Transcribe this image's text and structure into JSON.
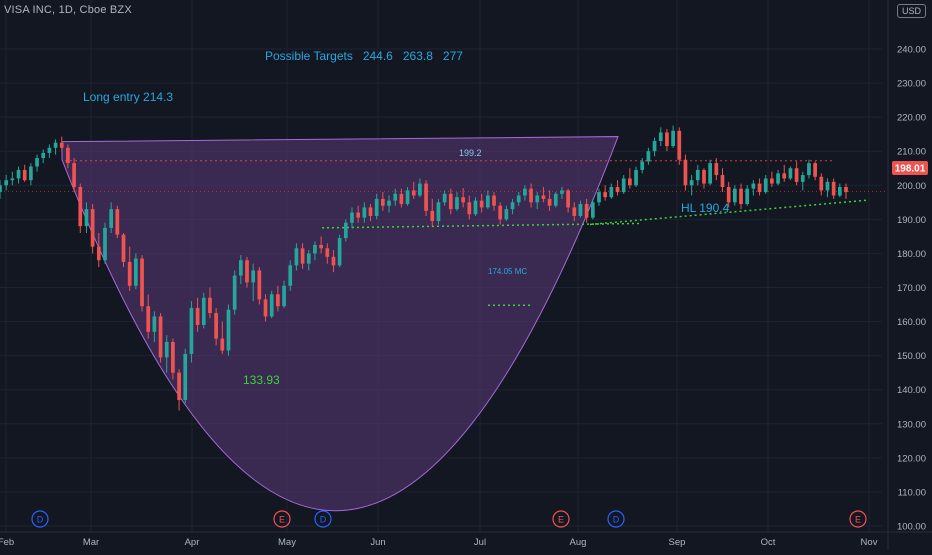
{
  "header": {
    "symbol_title": "VISA INC, 1D, Cboe BZX",
    "currency": "USD"
  },
  "chart_data": {
    "type": "candlestick",
    "symbol": "VISA INC",
    "interval": "1D",
    "exchange": "Cboe BZX",
    "currency": "USD",
    "x_tick_labels": [
      "Feb",
      "Mar",
      "Apr",
      "May",
      "Jun",
      "Jul",
      "Aug",
      "Sep",
      "Oct",
      "Nov"
    ],
    "y_tick_labels": [
      "100.00",
      "110.00",
      "120.00",
      "130.00",
      "140.00",
      "150.00",
      "160.00",
      "170.00",
      "180.00",
      "190.00",
      "200.00",
      "210.00",
      "220.00",
      "230.00",
      "240.00"
    ],
    "ylim": [
      100,
      246
    ],
    "current_price": "198.01",
    "last_price": 198.01,
    "grid": true,
    "annotations": {
      "targets": "Possible Targets   244.6   263.8   277",
      "long_entry": "Long entry 214.3",
      "low": "133.93",
      "high_label": "199.2",
      "ma_label": "174.05 MC",
      "hl": "HL 190.4"
    },
    "event_markers": [
      "D",
      "E",
      "D",
      "E",
      "D",
      "E"
    ],
    "lines": {
      "resistance_level": 207.2,
      "neckline_level": 198.2,
      "range_support": [
        187.5,
        188.8
      ],
      "rising_support": [
        188.5,
        195.6
      ]
    },
    "price_series_description": "daily candles Feb-Oct",
    "candles": [
      {
        "o": 198.0,
        "h": 201.5,
        "l": 196.0,
        "c": 200.0
      },
      {
        "o": 200.0,
        "h": 203.0,
        "l": 198.5,
        "c": 201.5
      },
      {
        "o": 201.5,
        "h": 204.0,
        "l": 200.0,
        "c": 202.0
      },
      {
        "o": 202.0,
        "h": 205.5,
        "l": 200.5,
        "c": 204.5
      },
      {
        "o": 204.5,
        "h": 206.0,
        "l": 201.0,
        "c": 201.5
      },
      {
        "o": 201.5,
        "h": 206.5,
        "l": 200.0,
        "c": 205.5
      },
      {
        "o": 205.5,
        "h": 209.0,
        "l": 204.0,
        "c": 208.0
      },
      {
        "o": 208.0,
        "h": 210.5,
        "l": 206.5,
        "c": 209.5
      },
      {
        "o": 209.5,
        "h": 212.0,
        "l": 208.0,
        "c": 211.0
      },
      {
        "o": 211.0,
        "h": 213.5,
        "l": 209.0,
        "c": 212.5
      },
      {
        "o": 212.5,
        "h": 214.3,
        "l": 210.0,
        "c": 211.0
      },
      {
        "o": 211.0,
        "h": 212.0,
        "l": 205.0,
        "c": 206.5
      },
      {
        "o": 206.5,
        "h": 208.0,
        "l": 198.0,
        "c": 199.5
      },
      {
        "o": 199.5,
        "h": 200.5,
        "l": 186.0,
        "c": 188.0
      },
      {
        "o": 188.0,
        "h": 195.0,
        "l": 186.0,
        "c": 193.0
      },
      {
        "o": 193.0,
        "h": 194.5,
        "l": 180.0,
        "c": 182.0
      },
      {
        "o": 182.0,
        "h": 186.0,
        "l": 176.0,
        "c": 178.0
      },
      {
        "o": 178.0,
        "h": 189.0,
        "l": 177.0,
        "c": 187.5
      },
      {
        "o": 187.5,
        "h": 195.0,
        "l": 186.0,
        "c": 193.0
      },
      {
        "o": 193.0,
        "h": 194.0,
        "l": 184.5,
        "c": 185.5
      },
      {
        "o": 185.5,
        "h": 186.0,
        "l": 176.0,
        "c": 177.5
      },
      {
        "o": 177.5,
        "h": 182.0,
        "l": 169.0,
        "c": 170.5
      },
      {
        "o": 170.5,
        "h": 180.0,
        "l": 169.5,
        "c": 178.5
      },
      {
        "o": 178.5,
        "h": 179.5,
        "l": 163.0,
        "c": 164.5
      },
      {
        "o": 164.5,
        "h": 168.0,
        "l": 155.0,
        "c": 157.0
      },
      {
        "o": 157.0,
        "h": 163.0,
        "l": 154.0,
        "c": 161.5
      },
      {
        "o": 161.5,
        "h": 162.5,
        "l": 148.0,
        "c": 149.5
      },
      {
        "o": 149.5,
        "h": 156.0,
        "l": 145.0,
        "c": 154.0
      },
      {
        "o": 154.0,
        "h": 155.0,
        "l": 143.0,
        "c": 145.0
      },
      {
        "o": 145.0,
        "h": 146.0,
        "l": 133.9,
        "c": 137.0
      },
      {
        "o": 137.0,
        "h": 152.0,
        "l": 136.0,
        "c": 150.5
      },
      {
        "o": 150.5,
        "h": 166.0,
        "l": 148.0,
        "c": 164.0
      },
      {
        "o": 164.0,
        "h": 167.0,
        "l": 157.0,
        "c": 159.0
      },
      {
        "o": 159.0,
        "h": 168.5,
        "l": 158.0,
        "c": 167.0
      },
      {
        "o": 167.0,
        "h": 170.0,
        "l": 161.0,
        "c": 162.5
      },
      {
        "o": 162.5,
        "h": 164.0,
        "l": 153.0,
        "c": 155.0
      },
      {
        "o": 155.0,
        "h": 160.0,
        "l": 150.5,
        "c": 151.5
      },
      {
        "o": 151.5,
        "h": 165.0,
        "l": 150.0,
        "c": 163.5
      },
      {
        "o": 163.5,
        "h": 175.0,
        "l": 162.0,
        "c": 173.5
      },
      {
        "o": 173.5,
        "h": 179.5,
        "l": 171.0,
        "c": 178.0
      },
      {
        "o": 178.0,
        "h": 179.0,
        "l": 170.0,
        "c": 171.5
      },
      {
        "o": 171.5,
        "h": 177.0,
        "l": 166.0,
        "c": 175.0
      },
      {
        "o": 175.0,
        "h": 176.0,
        "l": 165.0,
        "c": 166.5
      },
      {
        "o": 166.5,
        "h": 168.0,
        "l": 160.0,
        "c": 161.5
      },
      {
        "o": 161.5,
        "h": 169.0,
        "l": 161.0,
        "c": 168.0
      },
      {
        "o": 168.0,
        "h": 170.5,
        "l": 163.0,
        "c": 164.5
      },
      {
        "o": 164.5,
        "h": 172.0,
        "l": 164.0,
        "c": 170.5
      },
      {
        "o": 170.5,
        "h": 178.0,
        "l": 169.0,
        "c": 176.5
      },
      {
        "o": 176.5,
        "h": 183.0,
        "l": 175.0,
        "c": 181.5
      },
      {
        "o": 181.5,
        "h": 183.0,
        "l": 175.5,
        "c": 177.0
      },
      {
        "o": 177.0,
        "h": 181.0,
        "l": 175.0,
        "c": 180.0
      },
      {
        "o": 180.0,
        "h": 183.5,
        "l": 178.0,
        "c": 182.5
      },
      {
        "o": 182.5,
        "h": 185.0,
        "l": 180.0,
        "c": 181.5
      },
      {
        "o": 181.5,
        "h": 183.0,
        "l": 177.0,
        "c": 179.0
      },
      {
        "o": 179.0,
        "h": 181.0,
        "l": 174.5,
        "c": 176.5
      },
      {
        "o": 176.5,
        "h": 185.5,
        "l": 176.0,
        "c": 184.5
      },
      {
        "o": 184.5,
        "h": 190.0,
        "l": 183.5,
        "c": 189.0
      },
      {
        "o": 189.0,
        "h": 193.5,
        "l": 187.5,
        "c": 192.0
      },
      {
        "o": 192.0,
        "h": 194.0,
        "l": 189.0,
        "c": 190.5
      },
      {
        "o": 190.5,
        "h": 195.0,
        "l": 189.0,
        "c": 193.5
      },
      {
        "o": 193.5,
        "h": 194.5,
        "l": 189.5,
        "c": 191.0
      },
      {
        "o": 191.0,
        "h": 197.5,
        "l": 190.0,
        "c": 196.0
      },
      {
        "o": 196.0,
        "h": 198.0,
        "l": 192.5,
        "c": 194.0
      },
      {
        "o": 194.0,
        "h": 197.0,
        "l": 192.0,
        "c": 195.5
      },
      {
        "o": 195.5,
        "h": 199.0,
        "l": 194.0,
        "c": 197.5
      },
      {
        "o": 197.5,
        "h": 199.0,
        "l": 193.5,
        "c": 194.5
      },
      {
        "o": 194.5,
        "h": 199.5,
        "l": 194.0,
        "c": 198.5
      },
      {
        "o": 198.5,
        "h": 201.0,
        "l": 196.0,
        "c": 197.0
      },
      {
        "o": 197.0,
        "h": 202.0,
        "l": 196.5,
        "c": 200.5
      },
      {
        "o": 200.5,
        "h": 201.5,
        "l": 191.0,
        "c": 192.5
      },
      {
        "o": 192.5,
        "h": 196.0,
        "l": 188.0,
        "c": 189.5
      },
      {
        "o": 189.5,
        "h": 196.0,
        "l": 188.5,
        "c": 195.0
      },
      {
        "o": 195.0,
        "h": 198.5,
        "l": 194.0,
        "c": 197.5
      },
      {
        "o": 197.5,
        "h": 199.0,
        "l": 191.5,
        "c": 193.0
      },
      {
        "o": 193.0,
        "h": 198.0,
        "l": 192.5,
        "c": 196.5
      },
      {
        "o": 196.5,
        "h": 199.2,
        "l": 193.5,
        "c": 195.0
      },
      {
        "o": 195.0,
        "h": 197.0,
        "l": 190.0,
        "c": 191.5
      },
      {
        "o": 191.5,
        "h": 196.5,
        "l": 191.0,
        "c": 195.5
      },
      {
        "o": 195.5,
        "h": 197.5,
        "l": 192.0,
        "c": 193.5
      },
      {
        "o": 193.5,
        "h": 198.5,
        "l": 193.0,
        "c": 197.0
      },
      {
        "o": 197.0,
        "h": 198.0,
        "l": 192.5,
        "c": 194.0
      },
      {
        "o": 194.0,
        "h": 195.0,
        "l": 188.5,
        "c": 190.0
      },
      {
        "o": 190.0,
        "h": 194.0,
        "l": 189.5,
        "c": 193.0
      },
      {
        "o": 193.0,
        "h": 196.0,
        "l": 191.5,
        "c": 195.0
      },
      {
        "o": 195.0,
        "h": 198.0,
        "l": 194.0,
        "c": 197.0
      },
      {
        "o": 197.0,
        "h": 200.0,
        "l": 195.5,
        "c": 199.0
      },
      {
        "o": 199.0,
        "h": 200.5,
        "l": 193.5,
        "c": 195.0
      },
      {
        "o": 195.0,
        "h": 198.0,
        "l": 193.0,
        "c": 197.0
      },
      {
        "o": 197.0,
        "h": 199.5,
        "l": 195.0,
        "c": 196.0
      },
      {
        "o": 196.0,
        "h": 198.5,
        "l": 192.5,
        "c": 194.0
      },
      {
        "o": 194.0,
        "h": 198.0,
        "l": 193.5,
        "c": 197.5
      },
      {
        "o": 197.5,
        "h": 199.5,
        "l": 196.0,
        "c": 198.5
      },
      {
        "o": 198.5,
        "h": 199.0,
        "l": 192.0,
        "c": 193.5
      },
      {
        "o": 193.5,
        "h": 195.0,
        "l": 189.5,
        "c": 191.0
      },
      {
        "o": 191.0,
        "h": 195.5,
        "l": 190.5,
        "c": 194.5
      },
      {
        "o": 194.5,
        "h": 196.0,
        "l": 189.0,
        "c": 190.5
      },
      {
        "o": 190.5,
        "h": 196.0,
        "l": 190.0,
        "c": 195.0
      },
      {
        "o": 195.0,
        "h": 199.0,
        "l": 194.0,
        "c": 198.0
      },
      {
        "o": 198.0,
        "h": 200.0,
        "l": 195.5,
        "c": 196.5
      },
      {
        "o": 196.5,
        "h": 200.5,
        "l": 196.0,
        "c": 199.5
      },
      {
        "o": 199.5,
        "h": 201.5,
        "l": 197.0,
        "c": 198.0
      },
      {
        "o": 198.0,
        "h": 203.0,
        "l": 197.5,
        "c": 202.0
      },
      {
        "o": 202.0,
        "h": 205.0,
        "l": 199.0,
        "c": 200.0
      },
      {
        "o": 200.0,
        "h": 205.5,
        "l": 199.5,
        "c": 204.5
      },
      {
        "o": 204.5,
        "h": 208.0,
        "l": 203.5,
        "c": 207.0
      },
      {
        "o": 207.0,
        "h": 211.0,
        "l": 206.0,
        "c": 210.0
      },
      {
        "o": 210.0,
        "h": 214.0,
        "l": 208.5,
        "c": 213.0
      },
      {
        "o": 213.0,
        "h": 217.0,
        "l": 211.5,
        "c": 215.5
      },
      {
        "o": 215.5,
        "h": 216.5,
        "l": 210.0,
        "c": 211.5
      },
      {
        "o": 211.5,
        "h": 217.5,
        "l": 211.0,
        "c": 216.0
      },
      {
        "o": 216.0,
        "h": 217.0,
        "l": 206.0,
        "c": 207.5
      },
      {
        "o": 207.5,
        "h": 209.0,
        "l": 198.5,
        "c": 200.0
      },
      {
        "o": 200.0,
        "h": 203.0,
        "l": 197.0,
        "c": 201.5
      },
      {
        "o": 201.5,
        "h": 206.0,
        "l": 200.0,
        "c": 204.5
      },
      {
        "o": 204.5,
        "h": 205.0,
        "l": 199.0,
        "c": 200.5
      },
      {
        "o": 200.5,
        "h": 207.5,
        "l": 200.0,
        "c": 206.5
      },
      {
        "o": 206.5,
        "h": 208.0,
        "l": 201.5,
        "c": 203.0
      },
      {
        "o": 203.0,
        "h": 205.0,
        "l": 198.0,
        "c": 199.5
      },
      {
        "o": 199.5,
        "h": 201.0,
        "l": 193.5,
        "c": 195.0
      },
      {
        "o": 195.0,
        "h": 200.0,
        "l": 194.0,
        "c": 199.0
      },
      {
        "o": 199.0,
        "h": 200.5,
        "l": 193.0,
        "c": 194.5
      },
      {
        "o": 194.5,
        "h": 200.0,
        "l": 194.0,
        "c": 199.0
      },
      {
        "o": 199.0,
        "h": 201.5,
        "l": 197.0,
        "c": 200.5
      },
      {
        "o": 200.5,
        "h": 202.0,
        "l": 197.0,
        "c": 198.0
      },
      {
        "o": 198.0,
        "h": 203.0,
        "l": 197.5,
        "c": 202.0
      },
      {
        "o": 202.0,
        "h": 204.0,
        "l": 199.5,
        "c": 200.5
      },
      {
        "o": 200.5,
        "h": 204.5,
        "l": 200.0,
        "c": 203.5
      },
      {
        "o": 203.5,
        "h": 206.0,
        "l": 201.0,
        "c": 202.0
      },
      {
        "o": 202.0,
        "h": 205.5,
        "l": 201.5,
        "c": 205.0
      },
      {
        "o": 205.0,
        "h": 207.0,
        "l": 200.0,
        "c": 201.0
      },
      {
        "o": 201.0,
        "h": 204.0,
        "l": 198.5,
        "c": 203.0
      },
      {
        "o": 203.0,
        "h": 207.5,
        "l": 202.0,
        "c": 206.5
      },
      {
        "o": 206.5,
        "h": 207.0,
        "l": 201.5,
        "c": 202.5
      },
      {
        "o": 202.5,
        "h": 203.5,
        "l": 197.0,
        "c": 198.5
      },
      {
        "o": 198.5,
        "h": 202.0,
        "l": 196.5,
        "c": 201.0
      },
      {
        "o": 201.0,
        "h": 202.0,
        "l": 196.0,
        "c": 197.0
      },
      {
        "o": 197.0,
        "h": 200.5,
        "l": 196.5,
        "c": 199.5
      },
      {
        "o": 199.5,
        "h": 200.5,
        "l": 196.0,
        "c": 198.0
      }
    ],
    "curve": {
      "start_value": 207.5,
      "bottom_value": 104.5,
      "end_value": 214.3
    }
  },
  "colors": {
    "background": "#131722",
    "grid": "#1e2330",
    "axis_text": "#b2b5be",
    "up": "#26a69a",
    "down": "#ef5350",
    "annotation_blue": "#2aa6e0",
    "annotation_green": "#3fd13c",
    "cup_fill": "#5b3a7a",
    "cup_stroke": "#a66ad8",
    "resistance": "#e03c3c",
    "support": "#3fd13c",
    "price_tag": "#ef5350",
    "event_d": "#2962ff",
    "event_e": "#ef5350"
  },
  "icons": {
    "event_marker": "circle-letter-icon"
  }
}
